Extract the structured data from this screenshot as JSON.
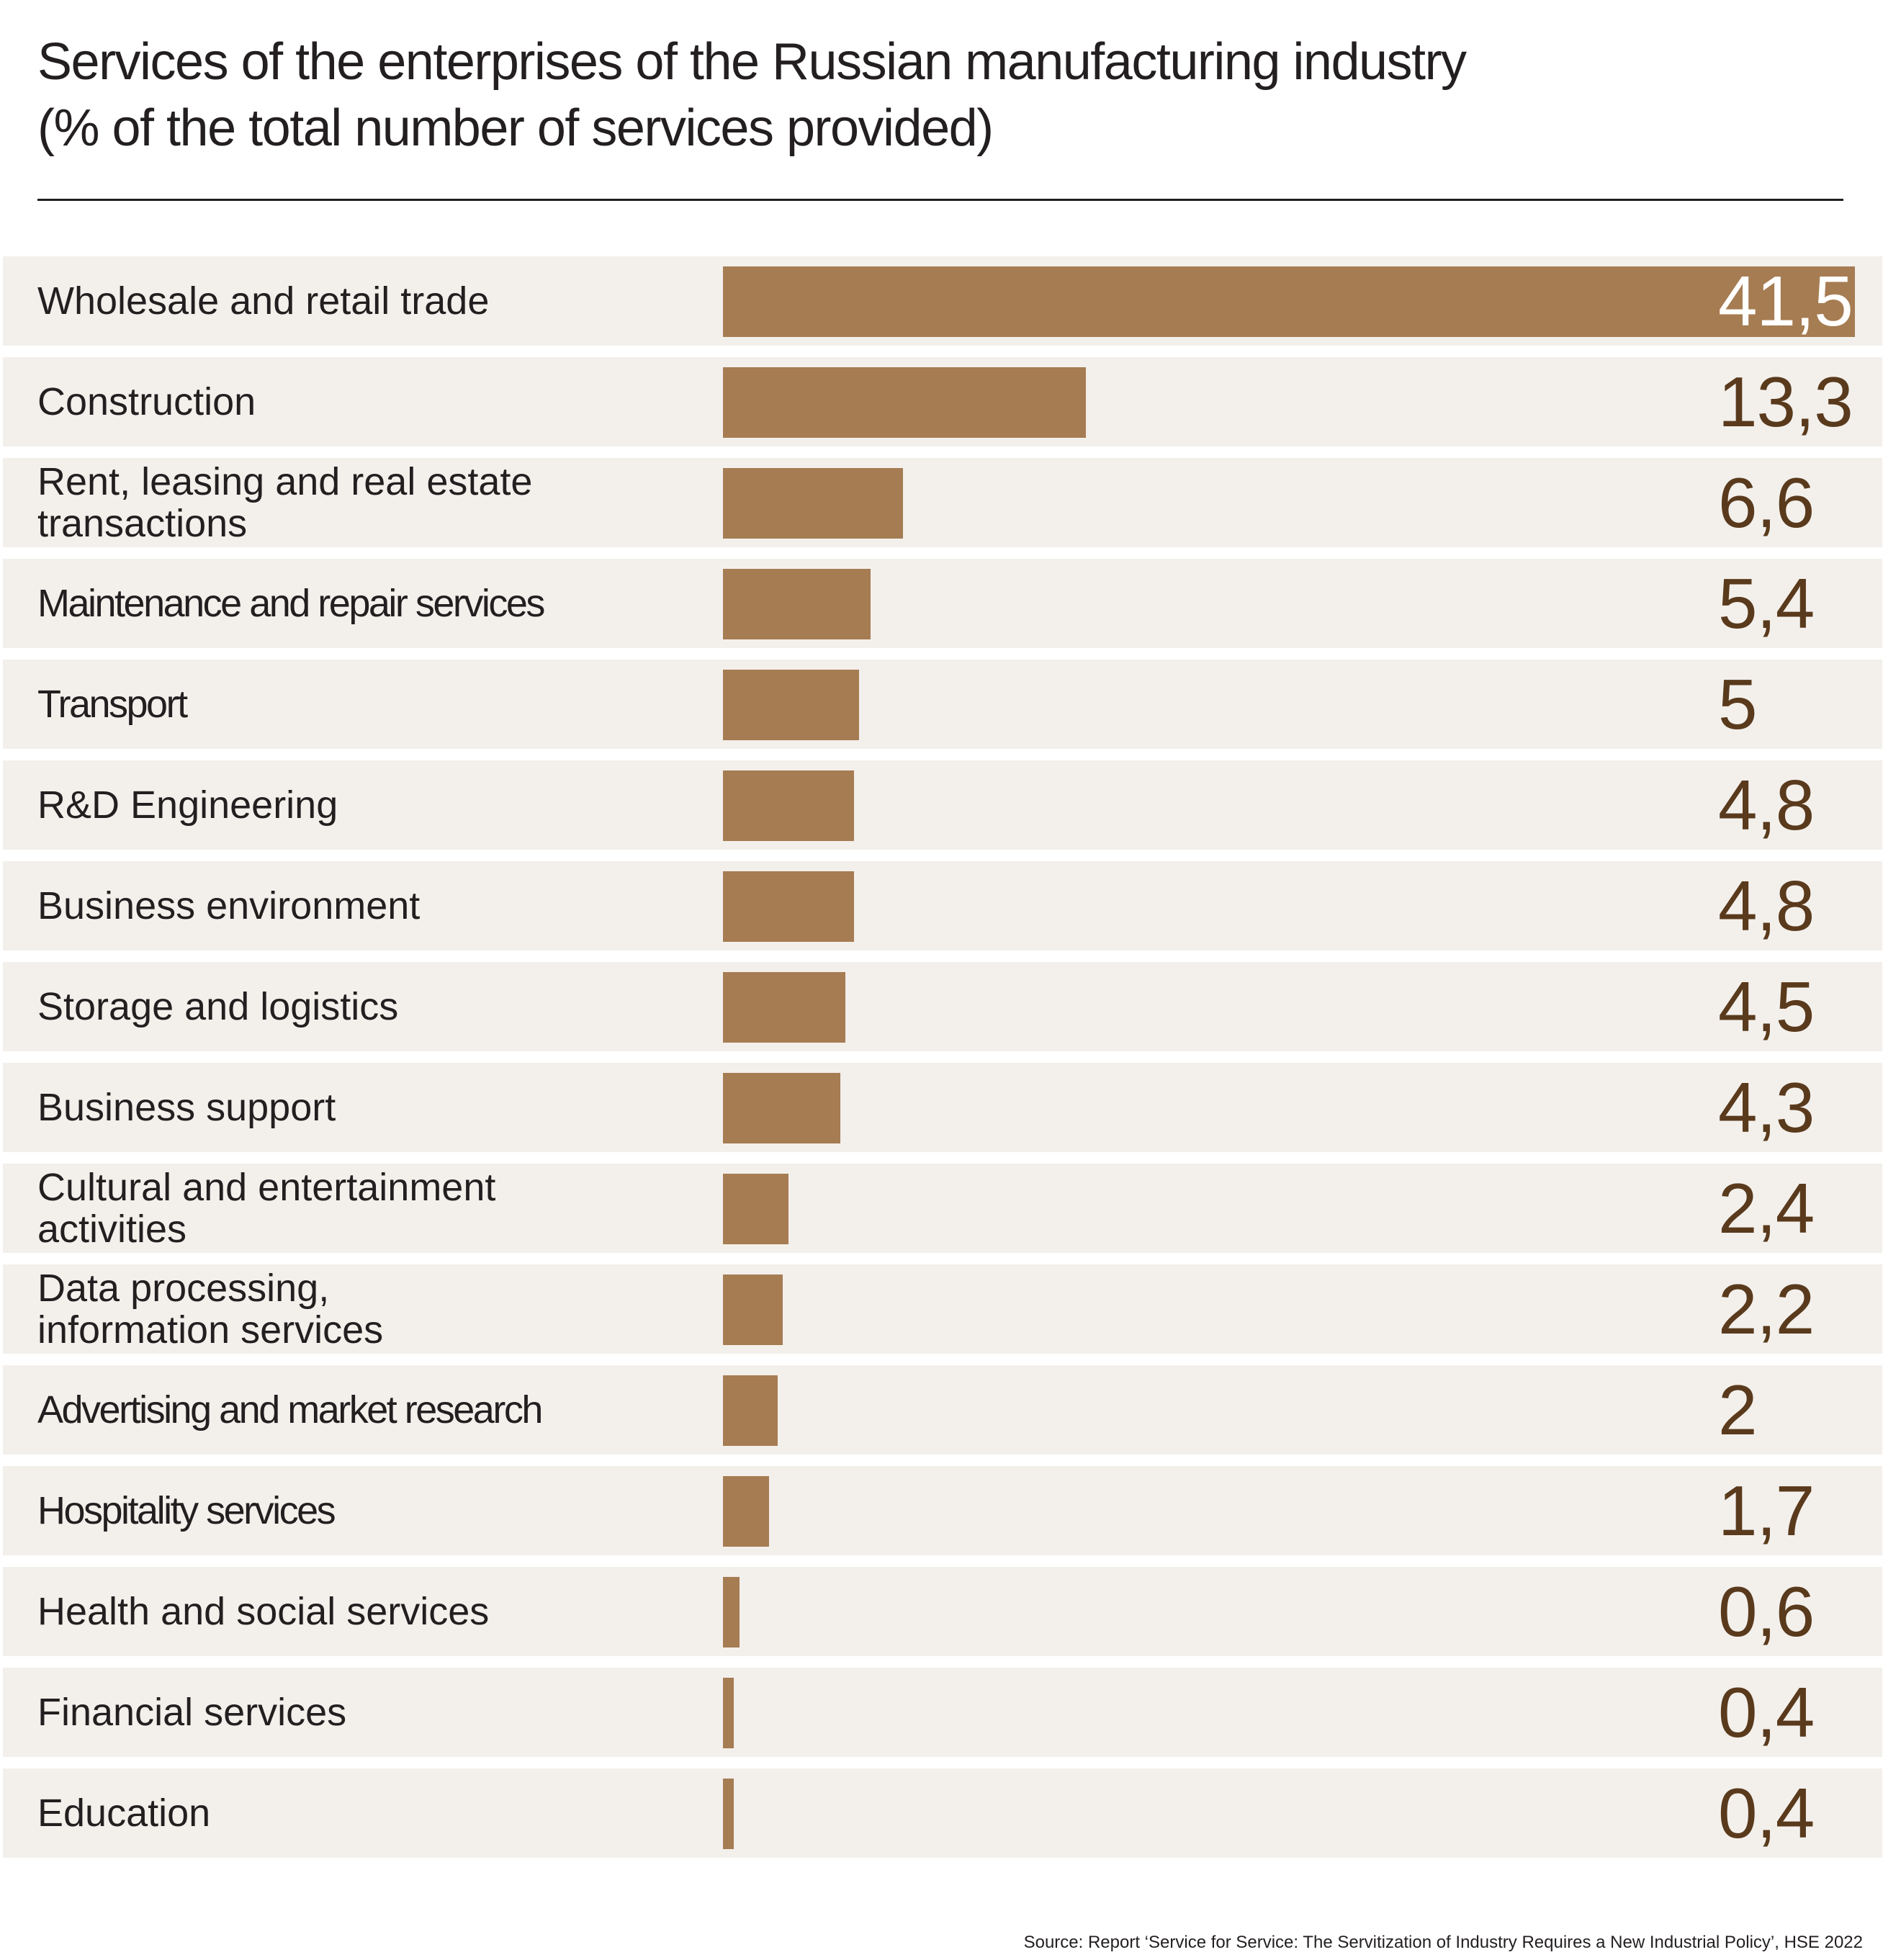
{
  "title_line1": "Services of the enterprises of the Russian manufacturing industry",
  "title_line2": "(% of the total number of services provided)",
  "source": "Source: Report ‘Service for Service: The Servitization of Industry Requires a New Industrial Policy’, HSE 2022",
  "colors": {
    "bar": "#a67c52",
    "row_background": "#f3f0ec",
    "value_text": "#5a3a1c"
  },
  "chart_data": {
    "type": "bar",
    "orientation": "horizontal",
    "title": "Services of the enterprises of the Russian manufacturing industry (% of the total number of services provided)",
    "xlim": [
      0,
      41.5
    ],
    "grid": false,
    "legend": "none",
    "categories": [
      "Wholesale and retail trade",
      "Construction",
      "Rent, leasing and real estate\ntransactions",
      "Maintenance and repair services",
      "Transport",
      "R&D Engineering",
      "Business environment",
      "Storage and logistics",
      "Business support",
      "Cultural and entertainment\nactivities",
      "Data processing,\ninformation services",
      "Advertising and market research",
      "Hospitality services",
      "Health and social services",
      "Financial services",
      "Education"
    ],
    "values": [
      41.5,
      13.3,
      6.6,
      5.4,
      5,
      4.8,
      4.8,
      4.5,
      4.3,
      2.4,
      2.2,
      2,
      1.7,
      0.6,
      0.4,
      0.4
    ],
    "value_labels": [
      "41,5",
      "13,3",
      "6,6",
      "5,4",
      "5",
      "4,8",
      "4,8",
      "4,5",
      "4,3",
      "2,4",
      "2,2",
      "2",
      "1,7",
      "0,6",
      "0,4",
      "0,4"
    ]
  }
}
